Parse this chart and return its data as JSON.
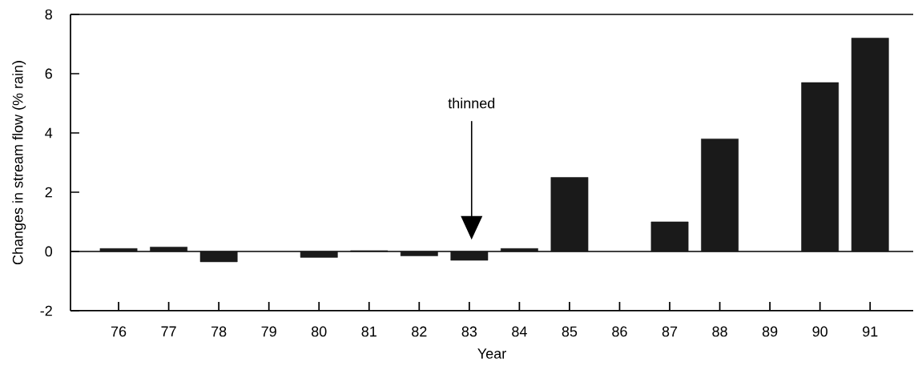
{
  "chart_data": {
    "type": "bar",
    "xlabel": "Year",
    "ylabel": "Changes in stream flow (% rain)",
    "categories": [
      "76",
      "77",
      "78",
      "79",
      "80",
      "81",
      "82",
      "83",
      "84",
      "85",
      "86",
      "87",
      "88",
      "89",
      "90",
      "91"
    ],
    "values": [
      0.1,
      0.15,
      -0.35,
      null,
      -0.2,
      0.03,
      -0.15,
      -0.3,
      0.1,
      2.5,
      null,
      1.0,
      3.8,
      null,
      5.7,
      7.2
    ],
    "color": "#1a1a1a",
    "ylim": [
      -2,
      8
    ],
    "yticks": [
      -2,
      0,
      2,
      4,
      6,
      8
    ],
    "ref_lines": [
      {
        "axis": "y",
        "value": 0,
        "color": "#000000"
      }
    ],
    "annotations": [
      "thinned"
    ]
  }
}
